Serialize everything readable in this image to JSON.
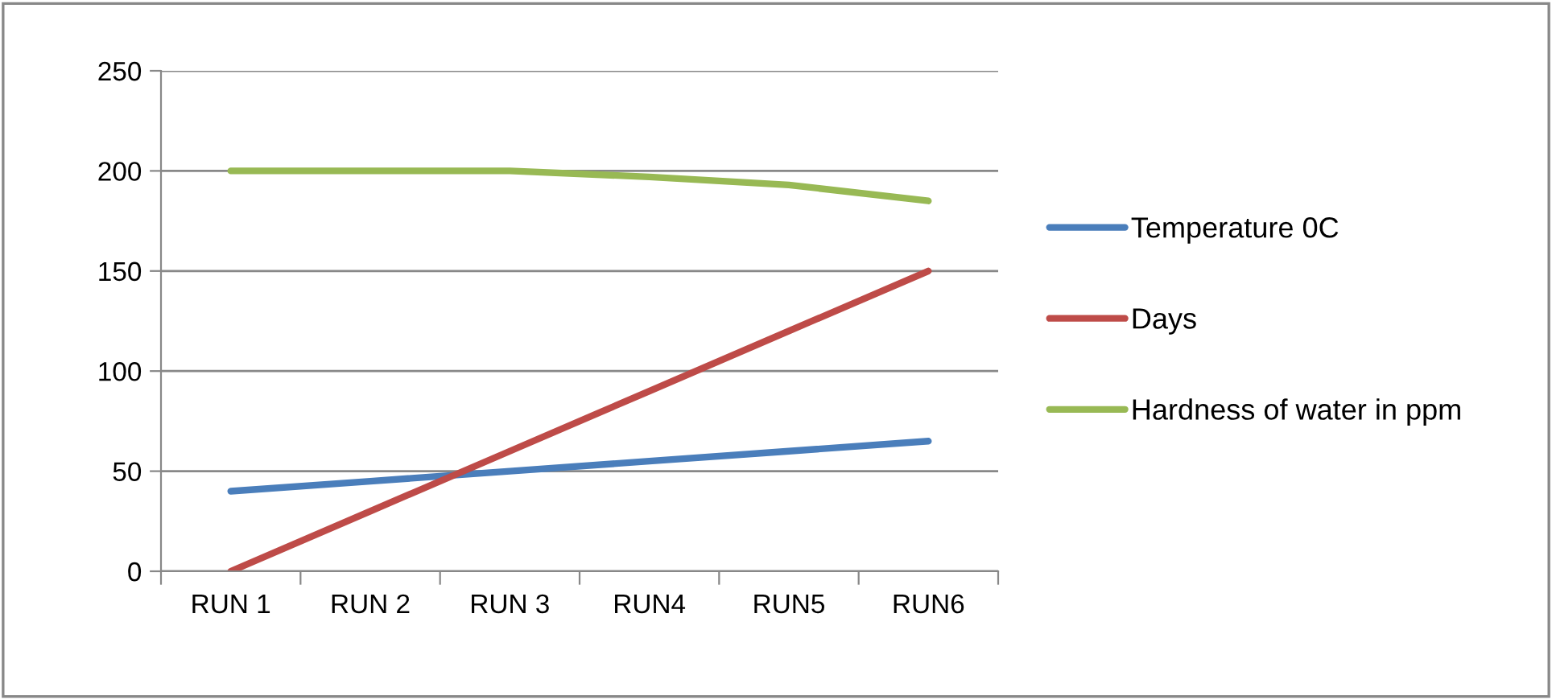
{
  "chart_data": {
    "type": "line",
    "categories": [
      "RUN 1",
      "RUN 2",
      "RUN 3",
      "RUN4",
      "RUN5",
      "RUN6"
    ],
    "series": [
      {
        "name": "Temperature 0C",
        "color": "#4a7ebb",
        "values": [
          40,
          45,
          50,
          55,
          60,
          65
        ]
      },
      {
        "name": "Days",
        "color": "#be4b48",
        "values": [
          0,
          30,
          60,
          90,
          120,
          150
        ]
      },
      {
        "name": "Hardness of water in ppm",
        "color": "#98b954",
        "values": [
          200,
          200,
          200,
          197,
          193,
          185
        ]
      }
    ],
    "ylim": [
      0,
      250
    ],
    "yticks": [
      0,
      50,
      100,
      150,
      200,
      250
    ],
    "grid": "y",
    "legend": "right",
    "marker": "none",
    "line_style": "solid"
  }
}
